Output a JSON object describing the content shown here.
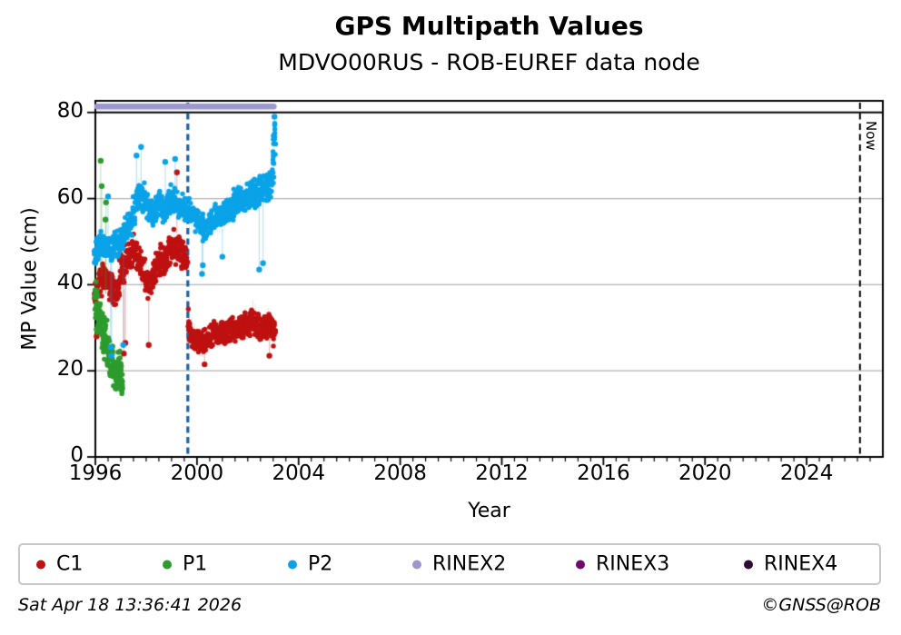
{
  "chart_data": {
    "type": "scatter",
    "title": "GPS Multipath Values",
    "subtitle": "MDVO00RUS - ROB-EUREF data node",
    "xlabel": "Year",
    "ylabel": "MP Value (cm)",
    "now_label": "Now",
    "xlim": [
      1996,
      2027
    ],
    "ylim": [
      0,
      82.7
    ],
    "xticks_major": [
      1996,
      2000,
      2004,
      2008,
      2012,
      2016,
      2020,
      2024
    ],
    "xtick_minor_step": 0.5,
    "yticks": [
      0,
      20,
      40,
      60,
      80
    ],
    "grid": {
      "y_values": [
        20,
        40,
        60
      ],
      "color": "#b4b4b4",
      "vertical": false
    },
    "hline": {
      "y": 80,
      "color": "#000000"
    },
    "vlines": [
      {
        "x": 1999.64,
        "color": "#1563ae",
        "style": "dashed",
        "width": 3.2,
        "label": ""
      },
      {
        "x": 2026.1,
        "color": "#000000",
        "style": "dashed",
        "width": 2.0,
        "label": "Now"
      }
    ],
    "legend": {
      "position": "bottom",
      "items": [
        {
          "label": "C1",
          "color": "#bf1111"
        },
        {
          "label": "P1",
          "color": "#2d9b2d"
        },
        {
          "label": "P2",
          "color": "#0aa3e8"
        },
        {
          "label": "RINEX2",
          "color": "#9c98ce"
        },
        {
          "label": "RINEX3",
          "color": "#70096f"
        },
        {
          "label": "RINEX4",
          "color": "#2e0b34"
        }
      ]
    },
    "series": [
      {
        "name": "C1",
        "color": "#bf1111",
        "points_per_cluster": 13,
        "cluster_x_halfwidth": 0.055,
        "dot_radius": 2.7,
        "clusters": [
          [
            1996.0,
            38,
            5
          ],
          [
            1996.1,
            40,
            4
          ],
          [
            1996.2,
            41,
            4
          ],
          [
            1996.3,
            42,
            4
          ],
          [
            1996.4,
            41.5,
            4
          ],
          [
            1996.5,
            41,
            4
          ],
          [
            1996.6,
            40,
            4
          ],
          [
            1996.7,
            39,
            4
          ],
          [
            1996.8,
            38,
            4
          ],
          [
            1996.9,
            40,
            4.5
          ],
          [
            1997.0,
            43,
            5
          ],
          [
            1997.1,
            44.5,
            5.5
          ],
          [
            1997.2,
            46,
            5
          ],
          [
            1997.3,
            46,
            4.5
          ],
          [
            1997.4,
            47,
            4
          ],
          [
            1997.5,
            48,
            4
          ],
          [
            1997.6,
            47,
            4
          ],
          [
            1997.7,
            45.5,
            4
          ],
          [
            1997.8,
            44,
            4.5
          ],
          [
            1997.9,
            42.5,
            4.5
          ],
          [
            1998.0,
            41.5,
            4
          ],
          [
            1998.1,
            40.5,
            4
          ],
          [
            1998.2,
            41,
            4
          ],
          [
            1998.3,
            42.5,
            4
          ],
          [
            1998.4,
            44,
            4
          ],
          [
            1998.5,
            45.5,
            4
          ],
          [
            1998.6,
            46,
            4
          ],
          [
            1998.7,
            45,
            4
          ],
          [
            1998.8,
            46.5,
            4
          ],
          [
            1998.9,
            47.5,
            4
          ],
          [
            1999.0,
            48,
            4
          ],
          [
            1999.1,
            49,
            4
          ],
          [
            1999.2,
            48.5,
            4
          ],
          [
            1999.3,
            48,
            4
          ],
          [
            1999.4,
            47.5,
            4
          ],
          [
            1999.5,
            47,
            4
          ],
          [
            1999.6,
            46,
            4
          ],
          [
            1999.7,
            31,
            5
          ],
          [
            1999.8,
            28.5,
            4
          ],
          [
            1999.9,
            27.5,
            3.5
          ],
          [
            2000.0,
            27,
            3.2
          ],
          [
            2000.1,
            26.5,
            3.2
          ],
          [
            2000.2,
            26.5,
            3.2
          ],
          [
            2000.3,
            27,
            3.2
          ],
          [
            2000.4,
            27.5,
            3.2
          ],
          [
            2000.5,
            28,
            3.2
          ],
          [
            2000.6,
            28.5,
            3.2
          ],
          [
            2000.7,
            29,
            3.2
          ],
          [
            2000.8,
            28.5,
            3.2
          ],
          [
            2000.9,
            28.5,
            3.2
          ],
          [
            2001.0,
            29,
            3.2
          ],
          [
            2001.1,
            28.5,
            3.2
          ],
          [
            2001.2,
            29,
            3.2
          ],
          [
            2001.3,
            29.5,
            3.2
          ],
          [
            2001.4,
            30,
            3.2
          ],
          [
            2001.5,
            29.5,
            3.2
          ],
          [
            2001.6,
            29.5,
            3.2
          ],
          [
            2001.7,
            30,
            3.2
          ],
          [
            2001.8,
            30.5,
            3.4
          ],
          [
            2001.9,
            31,
            3.4
          ],
          [
            2002.0,
            30.5,
            3.2
          ],
          [
            2002.1,
            31,
            3.4
          ],
          [
            2002.2,
            32.5,
            4
          ],
          [
            2002.3,
            31.5,
            4
          ],
          [
            2002.4,
            30.5,
            3.4
          ],
          [
            2002.5,
            30,
            3.2
          ],
          [
            2002.6,
            30,
            3.2
          ],
          [
            2002.7,
            30.5,
            3.4
          ],
          [
            2002.8,
            31,
            3.6
          ],
          [
            2002.9,
            30.5,
            3.4
          ],
          [
            2003.0,
            29.5,
            3
          ],
          [
            2003.05,
            28.5,
            3
          ]
        ],
        "outliers": [
          [
            1996.05,
            28,
            34
          ],
          [
            1997.12,
            24,
            39
          ],
          [
            1997.18,
            26.5,
            40
          ],
          [
            1998.1,
            26,
            37
          ],
          [
            1999.21,
            66.1,
            52
          ],
          [
            2000.3,
            21.5,
            24.5
          ],
          [
            2002.85,
            23.5,
            27.5
          ]
        ]
      },
      {
        "name": "P1",
        "color": "#2d9b2d",
        "points_per_cluster": 11,
        "cluster_x_halfwidth": 0.03,
        "dot_radius": 2.7,
        "clusters": [
          [
            1996.0,
            36,
            6
          ],
          [
            1996.05,
            34.5,
            6.5
          ],
          [
            1996.1,
            33.5,
            6
          ],
          [
            1996.15,
            33,
            6
          ],
          [
            1996.2,
            31.5,
            6
          ],
          [
            1996.25,
            30.5,
            6
          ],
          [
            1996.3,
            29.5,
            6
          ],
          [
            1996.35,
            28,
            6
          ],
          [
            1996.4,
            27,
            6
          ],
          [
            1996.45,
            26,
            6
          ],
          [
            1996.5,
            25,
            5.5
          ],
          [
            1996.55,
            24,
            5.5
          ],
          [
            1996.6,
            23,
            5
          ],
          [
            1996.65,
            22,
            5
          ],
          [
            1996.7,
            21,
            5
          ],
          [
            1996.75,
            20,
            4.5
          ],
          [
            1996.8,
            19.5,
            4.5
          ],
          [
            1996.85,
            19,
            4.5
          ],
          [
            1996.9,
            20,
            5
          ],
          [
            1996.95,
            21,
            5.5
          ],
          [
            1997.0,
            19,
            4
          ],
          [
            1997.05,
            17.5,
            3
          ]
        ],
        "outliers": [
          [
            1996.03,
            46,
            40
          ],
          [
            1996.21,
            68.8,
            44
          ],
          [
            1996.25,
            62.9,
            42
          ],
          [
            1996.4,
            55.1,
            38
          ],
          [
            1996.42,
            59.1,
            38
          ]
        ]
      },
      {
        "name": "P2",
        "color": "#0aa3e8",
        "points_per_cluster": 13,
        "cluster_x_halfwidth": 0.055,
        "dot_radius": 2.7,
        "clusters": [
          [
            1996.0,
            48,
            4
          ],
          [
            1996.1,
            49,
            3.6
          ],
          [
            1996.2,
            50,
            3.6
          ],
          [
            1996.3,
            49.5,
            3.6
          ],
          [
            1996.4,
            49,
            3.6
          ],
          [
            1996.5,
            48.5,
            3.6
          ],
          [
            1996.6,
            48,
            3.6
          ],
          [
            1996.7,
            48.5,
            3.6
          ],
          [
            1996.8,
            49.5,
            3.6
          ],
          [
            1996.9,
            50,
            3.8
          ],
          [
            1997.0,
            50.5,
            3.8
          ],
          [
            1997.1,
            51,
            3.8
          ],
          [
            1997.2,
            52,
            3.8
          ],
          [
            1997.3,
            53.5,
            3.8
          ],
          [
            1997.4,
            55,
            3.8
          ],
          [
            1997.5,
            57,
            3.8
          ],
          [
            1997.6,
            59.5,
            3.8
          ],
          [
            1997.7,
            61,
            3.8
          ],
          [
            1997.8,
            61,
            3.8
          ],
          [
            1997.9,
            60,
            3.8
          ],
          [
            1998.0,
            59,
            3.8
          ],
          [
            1998.1,
            58,
            3.6
          ],
          [
            1998.2,
            57.5,
            3.6
          ],
          [
            1998.3,
            57,
            3.6
          ],
          [
            1998.4,
            57.5,
            3.6
          ],
          [
            1998.5,
            58.5,
            3.6
          ],
          [
            1998.6,
            58,
            3.6
          ],
          [
            1998.7,
            57.5,
            3.6
          ],
          [
            1998.8,
            58.5,
            3.6
          ],
          [
            1998.9,
            59.5,
            3.6
          ],
          [
            1999.0,
            60,
            3.8
          ],
          [
            1999.1,
            59.5,
            3.8
          ],
          [
            1999.2,
            59,
            3.8
          ],
          [
            1999.3,
            58.5,
            3.6
          ],
          [
            1999.4,
            58,
            3.6
          ],
          [
            1999.5,
            57.5,
            3.6
          ],
          [
            1999.6,
            57,
            3.6
          ],
          [
            1999.7,
            56.5,
            3.8
          ],
          [
            1999.8,
            56,
            3.8
          ],
          [
            1999.9,
            55.5,
            3.8
          ],
          [
            2000.0,
            54.5,
            3.6
          ],
          [
            2000.1,
            54,
            3.6
          ],
          [
            2000.2,
            53.5,
            3.6
          ],
          [
            2000.3,
            53,
            3.6
          ],
          [
            2000.4,
            53.5,
            3.6
          ],
          [
            2000.5,
            54.5,
            3.6
          ],
          [
            2000.6,
            55.5,
            3.6
          ],
          [
            2000.7,
            56,
            3.6
          ],
          [
            2000.8,
            55.5,
            3.6
          ],
          [
            2000.9,
            55.5,
            3.6
          ],
          [
            2001.0,
            56,
            3.6
          ],
          [
            2001.1,
            56.5,
            3.6
          ],
          [
            2001.2,
            57.5,
            3.8
          ],
          [
            2001.3,
            58,
            3.8
          ],
          [
            2001.4,
            58.5,
            3.8
          ],
          [
            2001.5,
            59.5,
            3.8
          ],
          [
            2001.6,
            60,
            3.8
          ],
          [
            2001.7,
            60.5,
            3.8
          ],
          [
            2001.8,
            60,
            3.8
          ],
          [
            2001.9,
            59.5,
            3.8
          ],
          [
            2002.0,
            60.5,
            3.8
          ],
          [
            2002.1,
            61.5,
            3.8
          ],
          [
            2002.2,
            62,
            3.8
          ],
          [
            2002.3,
            61,
            3.8
          ],
          [
            2002.4,
            61.5,
            3.8
          ],
          [
            2002.5,
            62,
            3.8
          ],
          [
            2002.6,
            62.5,
            3.8
          ],
          [
            2002.7,
            62,
            3.8
          ],
          [
            2002.8,
            62.5,
            3.8
          ],
          [
            2002.9,
            63.5,
            4
          ],
          [
            2003.0,
            68,
            6
          ],
          [
            2003.05,
            74.5,
            4.5
          ]
        ],
        "outliers": [
          [
            1996.5,
            60.5,
            52
          ],
          [
            1996.6,
            25.5,
            45
          ],
          [
            1996.64,
            23.5,
            45
          ],
          [
            1997.1,
            26,
            47
          ],
          [
            1997.62,
            70,
            63
          ],
          [
            1997.8,
            72,
            64
          ],
          [
            1998.75,
            68.5,
            61
          ],
          [
            1999.14,
            69.2,
            62
          ],
          [
            2000.2,
            42.5,
            50
          ],
          [
            2000.23,
            44.5,
            50
          ],
          [
            2001.0,
            46.5,
            53
          ],
          [
            2002.45,
            43.5,
            58
          ],
          [
            2002.6,
            45,
            59
          ],
          [
            2003.05,
            79,
            75
          ]
        ]
      },
      {
        "name": "RINEX2",
        "color": "#9c98ce",
        "band_y": 81.4,
        "band_x": [
          1996.07,
          2003.02
        ],
        "band_thickness": 6.5,
        "clusters": [],
        "outliers": []
      },
      {
        "name": "RINEX3",
        "color": "#70096f",
        "clusters": [],
        "outliers": []
      },
      {
        "name": "RINEX4",
        "color": "#2e0b34",
        "clusters": [],
        "outliers": []
      }
    ]
  },
  "footer": {
    "timestamp": "Sat Apr 18 13:36:41 2026",
    "credit": "©GNSS@ROB"
  }
}
